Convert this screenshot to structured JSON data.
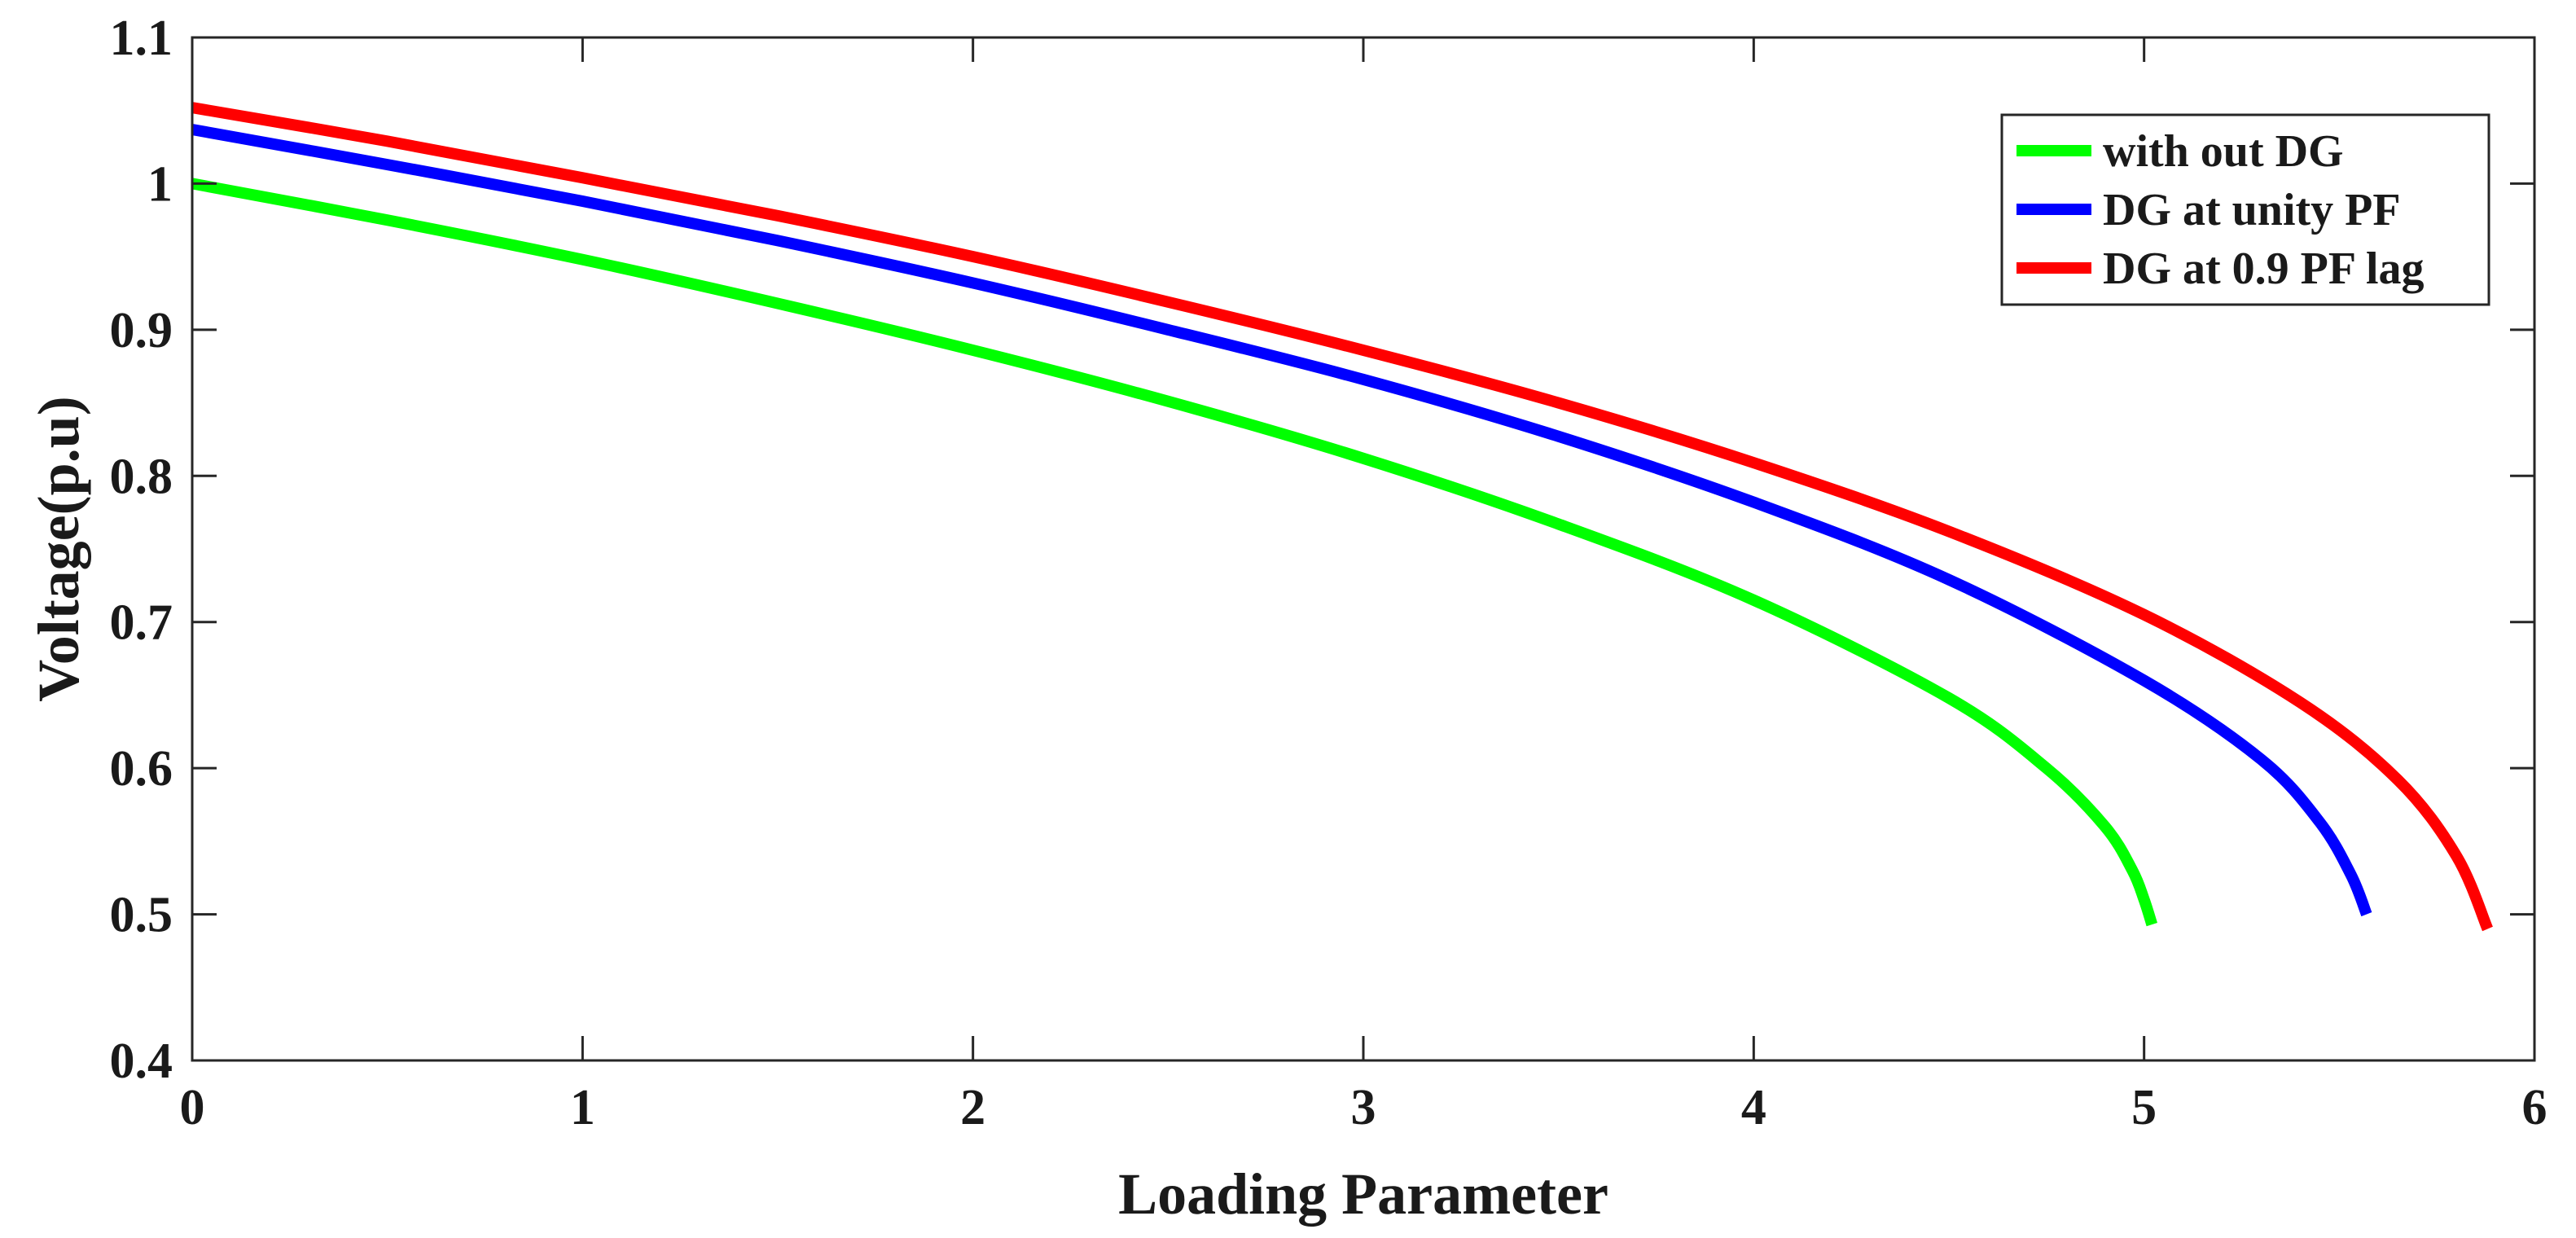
{
  "chart_data": {
    "type": "line",
    "title": "",
    "xlabel": "Loading Parameter",
    "ylabel": "Voltage(p.u)",
    "xlim": [
      0,
      6
    ],
    "ylim": [
      0.4,
      1.1
    ],
    "xticks": [
      "0",
      "1",
      "2",
      "3",
      "4",
      "5",
      "6"
    ],
    "yticks": [
      "0.4",
      "0.5",
      "0.6",
      "0.7",
      "0.8",
      "0.9",
      "1",
      "1.1"
    ],
    "grid": false,
    "legend_position": "top-right",
    "series": [
      {
        "name": "with out DG",
        "color": "#00ff00",
        "x": [
          0,
          0.5,
          1.0,
          1.5,
          2.0,
          2.5,
          3.0,
          3.5,
          4.0,
          4.5,
          4.75,
          4.9,
          4.97,
          5.0,
          5.02
        ],
        "y": [
          1.0,
          0.975,
          0.948,
          0.918,
          0.886,
          0.851,
          0.812,
          0.767,
          0.715,
          0.648,
          0.6,
          0.56,
          0.53,
          0.51,
          0.493
        ]
      },
      {
        "name": "DG at unity PF",
        "color": "#0000ff",
        "x": [
          0,
          0.5,
          1.0,
          1.5,
          2.0,
          2.5,
          3.0,
          3.5,
          4.0,
          4.5,
          5.0,
          5.3,
          5.45,
          5.53,
          5.57
        ],
        "y": [
          1.037,
          1.013,
          0.988,
          0.961,
          0.932,
          0.9,
          0.866,
          0.827,
          0.782,
          0.729,
          0.66,
          0.606,
          0.563,
          0.527,
          0.5
        ]
      },
      {
        "name": "DG at 0.9 PF lag",
        "color": "#ff0000",
        "x": [
          0,
          0.5,
          1.0,
          1.5,
          2.0,
          2.5,
          3.0,
          3.5,
          4.0,
          4.5,
          5.0,
          5.4,
          5.65,
          5.8,
          5.88
        ],
        "y": [
          1.052,
          1.029,
          1.004,
          0.978,
          0.95,
          0.919,
          0.886,
          0.85,
          0.809,
          0.762,
          0.705,
          0.645,
          0.592,
          0.54,
          0.49
        ]
      }
    ]
  }
}
